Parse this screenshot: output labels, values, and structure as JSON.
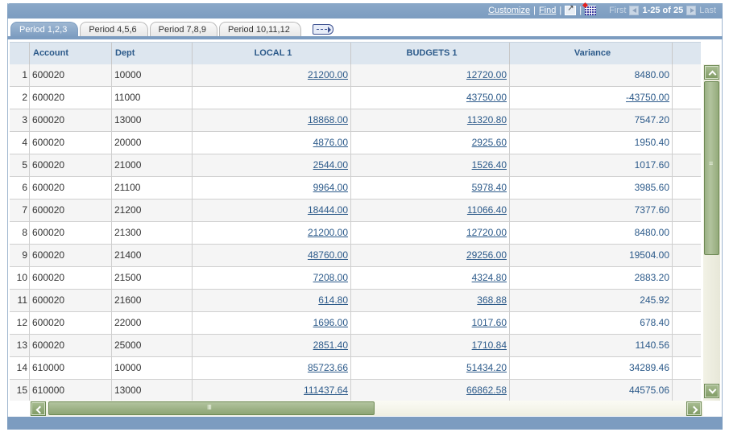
{
  "nav": {
    "customize": "Customize",
    "find": "Find",
    "sep": "|",
    "first": "First",
    "range": "1-25 of 25",
    "last": "Last",
    "icons": [
      "view-all-window-icon",
      "download-grid-icon",
      "prev-arrow-icon",
      "next-arrow-icon"
    ]
  },
  "tabs": [
    {
      "label": "Period 1,2,3",
      "active": true
    },
    {
      "label": "Period 4,5,6",
      "active": false
    },
    {
      "label": "Period 7,8,9",
      "active": false
    },
    {
      "label": "Period 10,11,12",
      "active": false
    }
  ],
  "tab_more_icon": "show-all-columns-icon",
  "grid": {
    "columns": [
      "",
      "Account",
      "Dept",
      "LOCAL 1",
      "BUDGETS 1",
      "Variance"
    ],
    "rows": [
      {
        "n": "1",
        "account": "600020",
        "dept": "10000",
        "local": "21200.00",
        "budget": "12720.00",
        "variance": "8480.00",
        "variance_link": false
      },
      {
        "n": "2",
        "account": "600020",
        "dept": "11000",
        "local": "",
        "budget": "43750.00",
        "variance": "-43750.00",
        "variance_link": true
      },
      {
        "n": "3",
        "account": "600020",
        "dept": "13000",
        "local": "18868.00",
        "budget": "11320.80",
        "variance": "7547.20",
        "variance_link": false
      },
      {
        "n": "4",
        "account": "600020",
        "dept": "20000",
        "local": "4876.00",
        "budget": "2925.60",
        "variance": "1950.40",
        "variance_link": false
      },
      {
        "n": "5",
        "account": "600020",
        "dept": "21000",
        "local": "2544.00",
        "budget": "1526.40",
        "variance": "1017.60",
        "variance_link": false
      },
      {
        "n": "6",
        "account": "600020",
        "dept": "21100",
        "local": "9964.00",
        "budget": "5978.40",
        "variance": "3985.60",
        "variance_link": false
      },
      {
        "n": "7",
        "account": "600020",
        "dept": "21200",
        "local": "18444.00",
        "budget": "11066.40",
        "variance": "7377.60",
        "variance_link": false
      },
      {
        "n": "8",
        "account": "600020",
        "dept": "21300",
        "local": "21200.00",
        "budget": "12720.00",
        "variance": "8480.00",
        "variance_link": false
      },
      {
        "n": "9",
        "account": "600020",
        "dept": "21400",
        "local": "48760.00",
        "budget": "29256.00",
        "variance": "19504.00",
        "variance_link": false
      },
      {
        "n": "10",
        "account": "600020",
        "dept": "21500",
        "local": "7208.00",
        "budget": "4324.80",
        "variance": "2883.20",
        "variance_link": false
      },
      {
        "n": "11",
        "account": "600020",
        "dept": "21600",
        "local": "614.80",
        "budget": "368.88",
        "variance": "245.92",
        "variance_link": false
      },
      {
        "n": "12",
        "account": "600020",
        "dept": "22000",
        "local": "1696.00",
        "budget": "1017.60",
        "variance": "678.40",
        "variance_link": false
      },
      {
        "n": "13",
        "account": "600020",
        "dept": "25000",
        "local": "2851.40",
        "budget": "1710.84",
        "variance": "1140.56",
        "variance_link": false
      },
      {
        "n": "14",
        "account": "610000",
        "dept": "10000",
        "local": "85723.66",
        "budget": "51434.20",
        "variance": "34289.46",
        "variance_link": false
      },
      {
        "n": "15",
        "account": "610000",
        "dept": "13000",
        "local": "111437.64",
        "budget": "66862.58",
        "variance": "44575.06",
        "variance_link": false
      }
    ]
  },
  "colors": {
    "header_bar": "#7c9cc0",
    "link": "#2c5a8a",
    "column_header_bg": "#dde6ef",
    "scrollbar_green": "#9bb084"
  }
}
